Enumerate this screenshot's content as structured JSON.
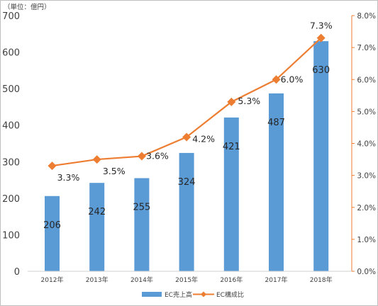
{
  "chart_data": {
    "type": "bar",
    "unit_label": "（単位：億円）",
    "categories": [
      "2012年",
      "2013年",
      "2014年",
      "2015年",
      "2016年",
      "2017年",
      "2018年"
    ],
    "series": [
      {
        "name": "EC売上高",
        "type": "bar",
        "axis": "left",
        "color": "#5b9bd5",
        "values": [
          206,
          242,
          255,
          324,
          421,
          487,
          630
        ],
        "value_labels": [
          "206",
          "242",
          "255",
          "324",
          "421",
          "487",
          "630"
        ]
      },
      {
        "name": "EC構成比",
        "type": "line",
        "axis": "right",
        "color": "#ed7d31",
        "marker": "diamond",
        "values": [
          3.3,
          3.5,
          3.6,
          4.2,
          5.3,
          6.0,
          7.3
        ],
        "value_labels": [
          "3.3%",
          "3.5%",
          "3.6%",
          "4.2%",
          "5.3%",
          "6.0%",
          "7.3%"
        ]
      }
    ],
    "y_left": {
      "lim": [
        0,
        700
      ],
      "ticks": [
        0,
        100,
        200,
        300,
        400,
        500,
        600,
        700
      ],
      "tick_labels": [
        "0",
        "100",
        "200",
        "300",
        "400",
        "500",
        "600",
        "700"
      ]
    },
    "y_right": {
      "lim": [
        0,
        8
      ],
      "ticks": [
        0,
        1,
        2,
        3,
        4,
        5,
        6,
        7,
        8
      ],
      "tick_labels": [
        "0.0%",
        "1.0%",
        "2.0%",
        "3.0%",
        "4.0%",
        "5.0%",
        "6.0%",
        "7.0%",
        "8.0%"
      ]
    },
    "grid": false,
    "legend": "bottom-center",
    "legend_items": [
      "EC売上高",
      "EC構成比"
    ]
  }
}
